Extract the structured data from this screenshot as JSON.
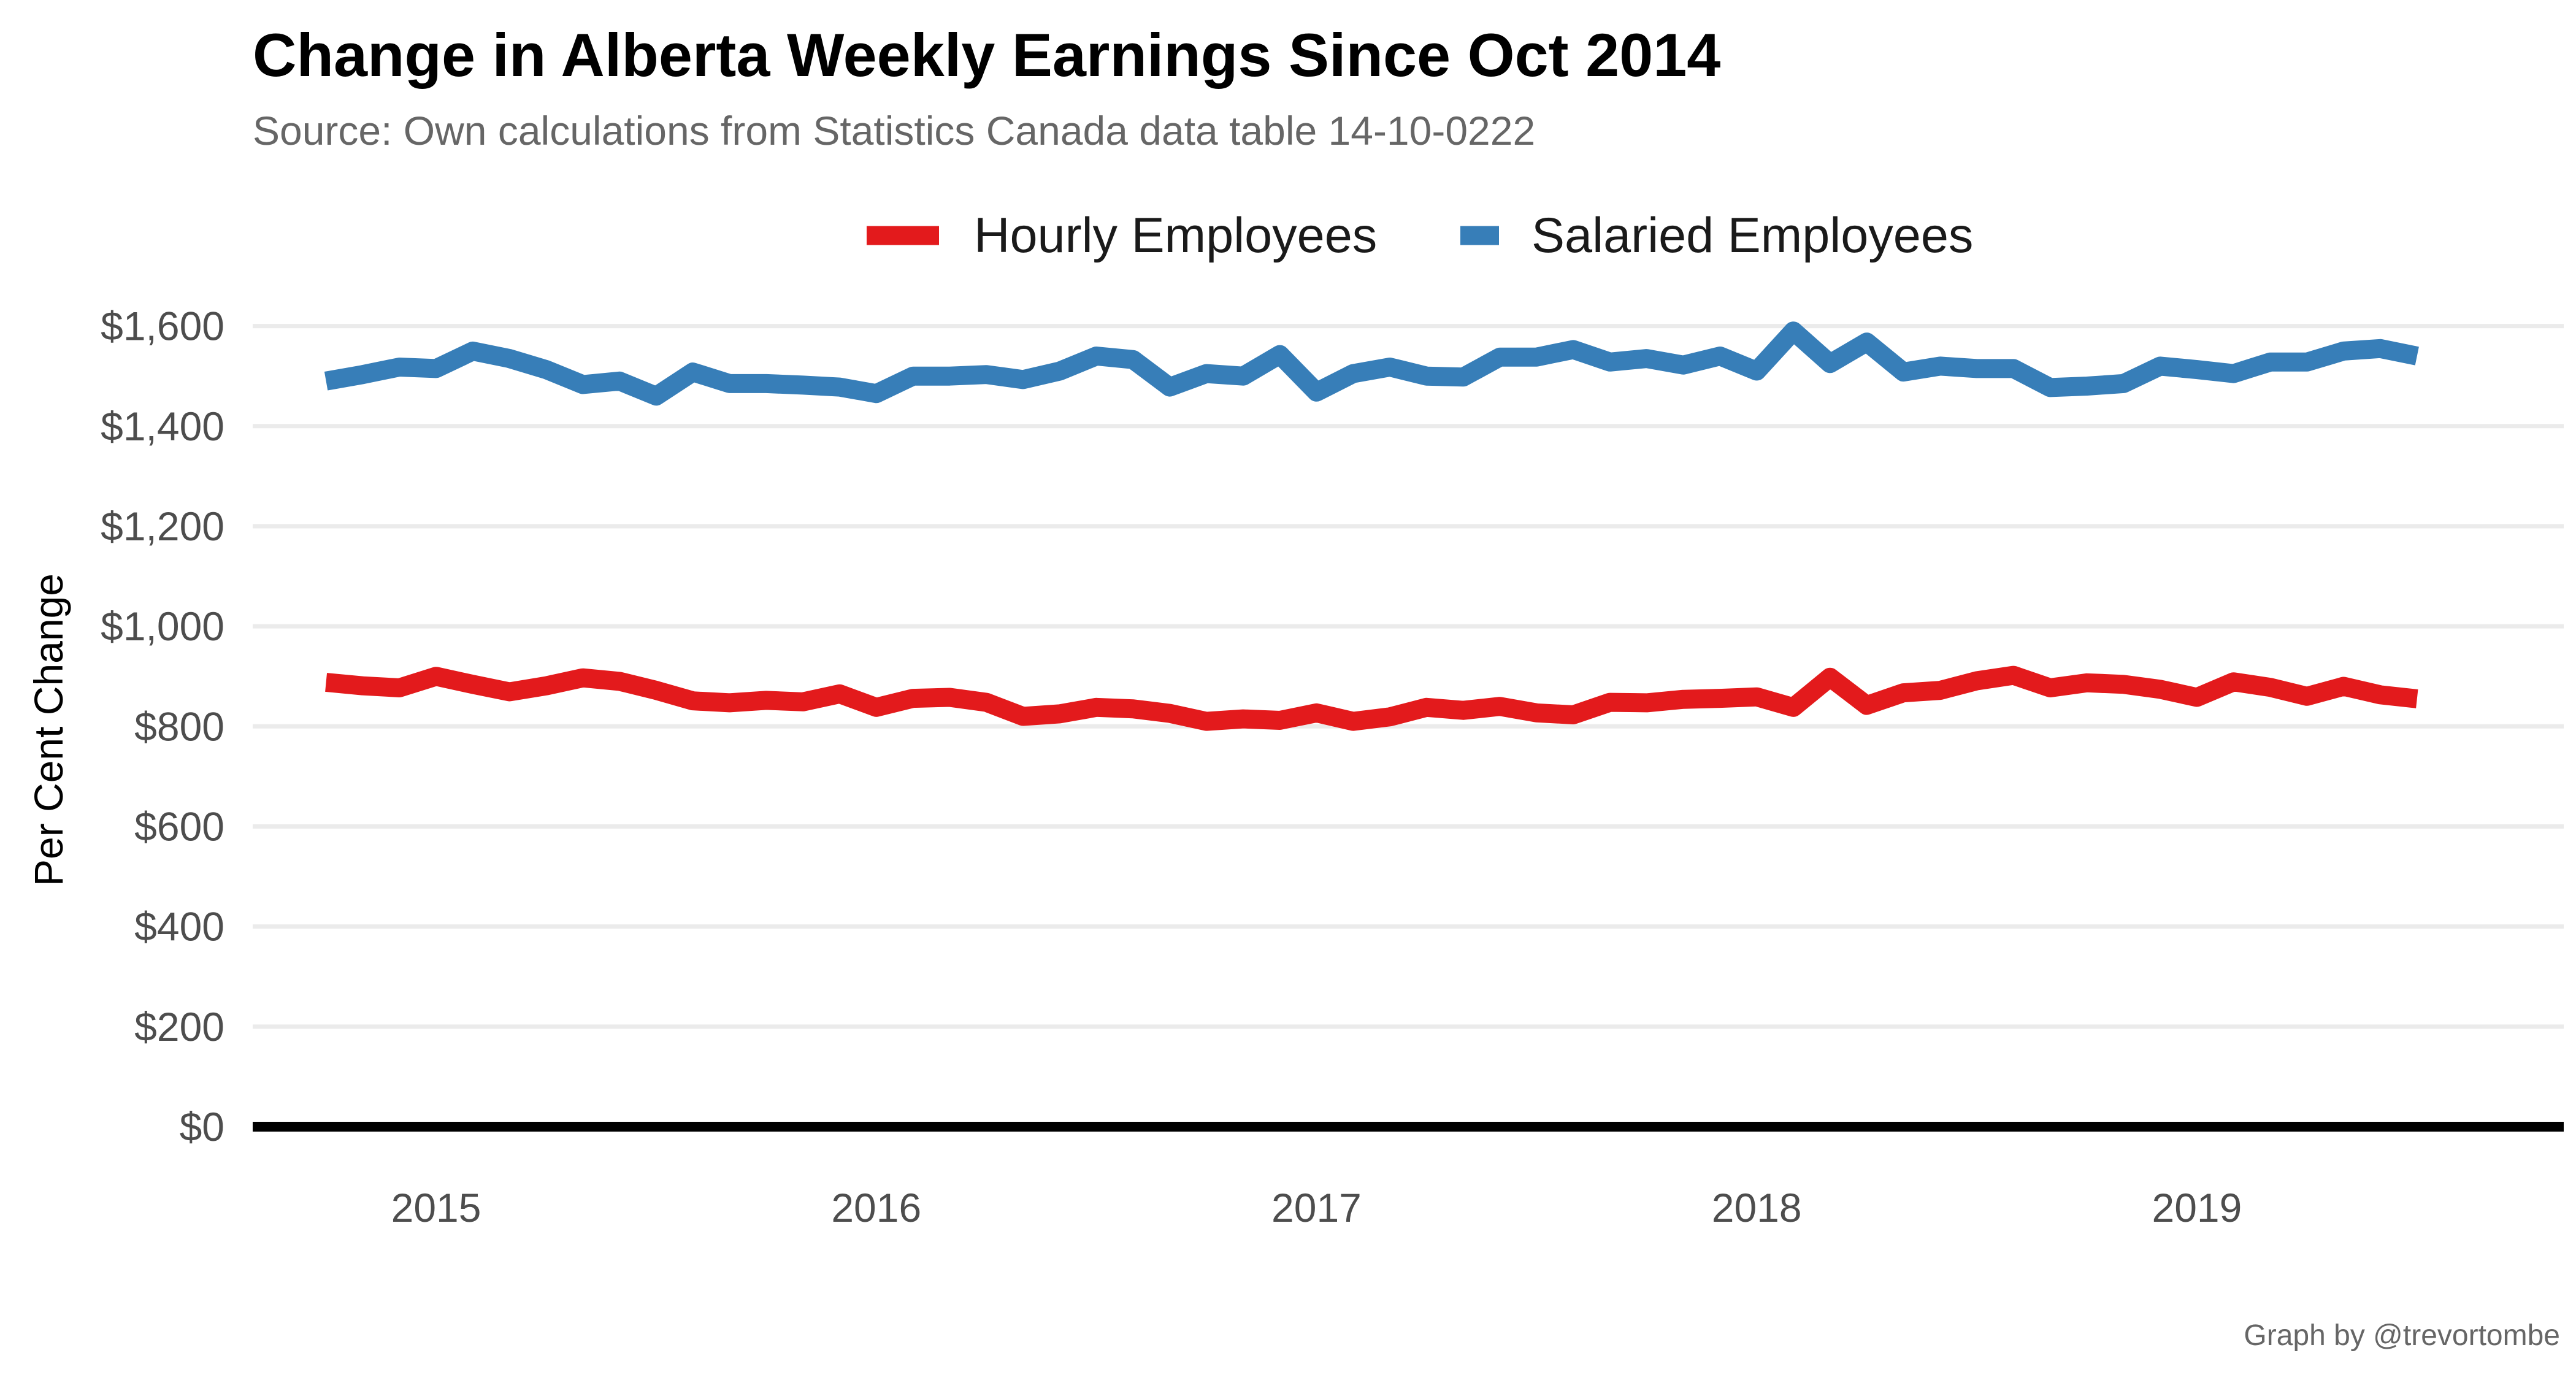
{
  "chart_data": {
    "type": "line",
    "title": "Change in Alberta Weekly Earnings Since Oct 2014",
    "subtitle": "Source: Own calculations from Statistics Canada data table 14-10-0222",
    "ylabel": "Per Cent Change",
    "xlabel": "",
    "caption": "Graph by @trevortombe",
    "legend_position": "top",
    "grid": "horizontal",
    "ylim": [
      0,
      1700
    ],
    "y_ticks": [
      0,
      200,
      400,
      600,
      800,
      1000,
      1200,
      1400,
      1600
    ],
    "y_tick_labels": [
      "$0",
      "$200",
      "$400",
      "$600",
      "$800",
      "$1,000",
      "$1,200",
      "$1,400",
      "$1,600"
    ],
    "x_ticks": [
      "2015-01",
      "2016-01",
      "2017-01",
      "2018-01",
      "2019-01"
    ],
    "x_tick_labels": [
      "2015",
      "2016",
      "2017",
      "2018",
      "2019"
    ],
    "x_range": [
      "2014-08",
      "2019-11"
    ],
    "x": [
      "2014-10",
      "2014-11",
      "2014-12",
      "2015-01",
      "2015-02",
      "2015-03",
      "2015-04",
      "2015-05",
      "2015-06",
      "2015-07",
      "2015-08",
      "2015-09",
      "2015-10",
      "2015-11",
      "2015-12",
      "2016-01",
      "2016-02",
      "2016-03",
      "2016-04",
      "2016-05",
      "2016-06",
      "2016-07",
      "2016-08",
      "2016-09",
      "2016-10",
      "2016-11",
      "2016-12",
      "2017-01",
      "2017-02",
      "2017-03",
      "2017-04",
      "2017-05",
      "2017-06",
      "2017-07",
      "2017-08",
      "2017-09",
      "2017-10",
      "2017-11",
      "2017-12",
      "2018-01",
      "2018-02",
      "2018-03",
      "2018-04",
      "2018-05",
      "2018-06",
      "2018-07",
      "2018-08",
      "2018-09",
      "2018-10",
      "2018-11",
      "2018-12",
      "2019-01",
      "2019-02",
      "2019-03",
      "2019-04",
      "2019-05",
      "2019-06",
      "2019-07"
    ],
    "series": [
      {
        "name": "Hourly Employees",
        "color": "#E31A1C",
        "values": [
          888,
          881,
          877,
          900,
          884,
          869,
          881,
          897,
          890,
          872,
          851,
          847,
          852,
          849,
          865,
          838,
          856,
          858,
          848,
          820,
          825,
          838,
          835,
          826,
          810,
          815,
          812,
          827,
          810,
          819,
          838,
          832,
          840,
          827,
          823,
          848,
          847,
          854,
          856,
          859,
          838,
          898,
          842,
          867,
          872,
          891,
          902,
          877,
          887,
          884,
          874,
          858,
          889,
          878,
          860,
          880,
          863,
          855
        ]
      },
      {
        "name": "Salaried Employees",
        "color": "#377EB8",
        "values": [
          1490,
          1503,
          1518,
          1515,
          1550,
          1535,
          1513,
          1483,
          1490,
          1460,
          1508,
          1485,
          1485,
          1482,
          1478,
          1465,
          1500,
          1500,
          1503,
          1493,
          1510,
          1540,
          1533,
          1478,
          1505,
          1500,
          1543,
          1468,
          1505,
          1518,
          1500,
          1498,
          1538,
          1538,
          1553,
          1528,
          1535,
          1522,
          1540,
          1510,
          1590,
          1525,
          1568,
          1508,
          1520,
          1515,
          1515,
          1477,
          1480,
          1485,
          1520,
          1513,
          1505,
          1528,
          1528,
          1550,
          1555,
          1540
        ]
      }
    ]
  }
}
